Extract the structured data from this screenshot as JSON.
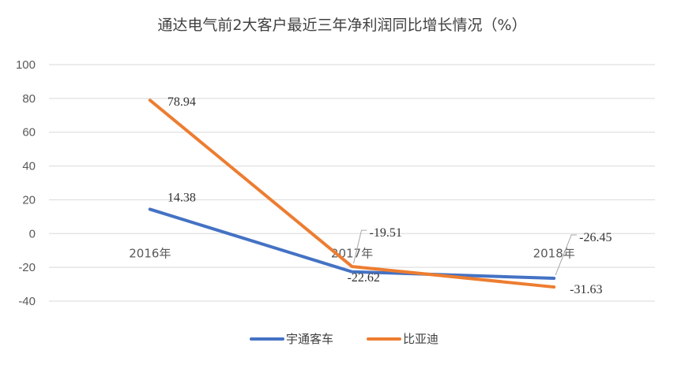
{
  "chart_data": {
    "type": "line",
    "title": "通达电气前2大客户最近三年净利润同比增长情况（%）",
    "categories": [
      "2016年",
      "2017年",
      "2018年"
    ],
    "yticks": [
      "100",
      "80",
      "60",
      "40",
      "20",
      "0",
      "-20",
      "-40"
    ],
    "ylim": [
      -40,
      100
    ],
    "ystep": 20,
    "grid": true,
    "legend_position": "bottom",
    "series": [
      {
        "name": "宇通客车",
        "color": "#4472c4",
        "values": [
          14.38,
          -22.62,
          -26.45
        ],
        "labels": [
          "14.38",
          "-22.62",
          "-26.45"
        ]
      },
      {
        "name": "比亚迪",
        "color": "#ed7d31",
        "values": [
          78.94,
          -19.51,
          -31.63
        ],
        "labels": [
          "78.94",
          "-19.51",
          "-31.63"
        ]
      }
    ]
  }
}
